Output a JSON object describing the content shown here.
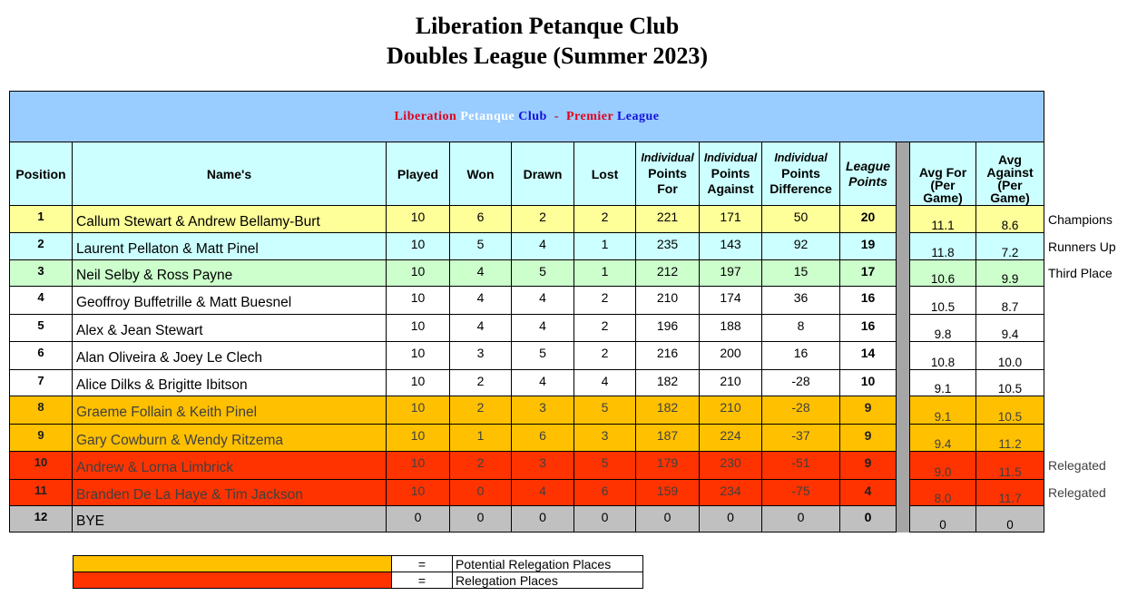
{
  "page_title": [
    "Liberation Petanque Club",
    "Doubles League (Summer 2023)"
  ],
  "banner": {
    "part1": "Liberation",
    "part2": "Petanque",
    "part3": "Club",
    "sep": "-",
    "part4": "Premier",
    "part5": "League"
  },
  "headers": {
    "position": "Position",
    "names": "Name's",
    "played": "Played",
    "won": "Won",
    "drawn": "Drawn",
    "lost": "Lost",
    "pf_top": "Individual",
    "pf_bottom": "Points For",
    "pa_top": "Individual",
    "pa_bottom": "Points Against",
    "pd_top": "Individual",
    "pd_bottom": "Points Difference",
    "league_points": "League Points",
    "avg_for": "Avg For (Per Game)",
    "avg_against": "Avg Against (Per Game)"
  },
  "colors": {
    "banner": "#99ccff",
    "header": "#ccffff",
    "champions": "#ffff99",
    "runners_up": "#ccffff",
    "third": "#ccffcc",
    "potential_relegation": "#ffc000",
    "relegation": "#ff3300",
    "bye": "#c0c0c0"
  },
  "rows": [
    {
      "pos": "1",
      "name": "Callum Stewart & Andrew Bellamy-Burt",
      "played": "10",
      "won": "6",
      "drawn": "2",
      "lost": "2",
      "pf": "221",
      "pa": "171",
      "pd": "50",
      "lp": "20",
      "avg_for": "11.1",
      "avg_against": "8.6",
      "note": "Champions"
    },
    {
      "pos": "2",
      "name": "Laurent Pellaton & Matt Pinel",
      "played": "10",
      "won": "5",
      "drawn": "4",
      "lost": "1",
      "pf": "235",
      "pa": "143",
      "pd": "92",
      "lp": "19",
      "avg_for": "11.8",
      "avg_against": "7.2",
      "note": "Runners Up"
    },
    {
      "pos": "3",
      "name": "Neil Selby & Ross Payne",
      "played": "10",
      "won": "4",
      "drawn": "5",
      "lost": "1",
      "pf": "212",
      "pa": "197",
      "pd": "15",
      "lp": "17",
      "avg_for": "10.6",
      "avg_against": "9.9",
      "note": "Third Place"
    },
    {
      "pos": "4",
      "name": "Geoffroy Buffetrille & Matt Buesnel",
      "played": "10",
      "won": "4",
      "drawn": "4",
      "lost": "2",
      "pf": "210",
      "pa": "174",
      "pd": "36",
      "lp": "16",
      "avg_for": "10.5",
      "avg_against": "8.7",
      "note": ""
    },
    {
      "pos": "5",
      "name": "Alex & Jean Stewart",
      "played": "10",
      "won": "4",
      "drawn": "4",
      "lost": "2",
      "pf": "196",
      "pa": "188",
      "pd": "8",
      "lp": "16",
      "avg_for": "9.8",
      "avg_against": "9.4",
      "note": ""
    },
    {
      "pos": "6",
      "name": "Alan Oliveira & Joey Le Clech",
      "played": "10",
      "won": "3",
      "drawn": "5",
      "lost": "2",
      "pf": "216",
      "pa": "200",
      "pd": "16",
      "lp": "14",
      "avg_for": "10.8",
      "avg_against": "10.0",
      "note": ""
    },
    {
      "pos": "7",
      "name": "Alice Dilks & Brigitte Ibitson",
      "played": "10",
      "won": "2",
      "drawn": "4",
      "lost": "4",
      "pf": "182",
      "pa": "210",
      "pd": "-28",
      "lp": "10",
      "avg_for": "9.1",
      "avg_against": "10.5",
      "note": ""
    },
    {
      "pos": "8",
      "name": "Graeme Follain & Keith Pinel",
      "played": "10",
      "won": "2",
      "drawn": "3",
      "lost": "5",
      "pf": "182",
      "pa": "210",
      "pd": "-28",
      "lp": "9",
      "avg_for": "9.1",
      "avg_against": "10.5",
      "note": ""
    },
    {
      "pos": "9",
      "name": "Gary Cowburn & Wendy Ritzema",
      "played": "10",
      "won": "1",
      "drawn": "6",
      "lost": "3",
      "pf": "187",
      "pa": "224",
      "pd": "-37",
      "lp": "9",
      "avg_for": "9.4",
      "avg_against": "11.2",
      "note": ""
    },
    {
      "pos": "10",
      "name": "Andrew & Lorna Limbrick",
      "played": "10",
      "won": "2",
      "drawn": "3",
      "lost": "5",
      "pf": "179",
      "pa": "230",
      "pd": "-51",
      "lp": "9",
      "avg_for": "9.0",
      "avg_against": "11.5",
      "note": "Relegated"
    },
    {
      "pos": "11",
      "name": "Branden De La Haye & Tim Jackson",
      "played": "10",
      "won": "0",
      "drawn": "4",
      "lost": "6",
      "pf": "159",
      "pa": "234",
      "pd": "-75",
      "lp": "4",
      "avg_for": "8.0",
      "avg_against": "11.7",
      "note": "Relegated"
    },
    {
      "pos": "12",
      "name": "BYE",
      "played": "0",
      "won": "0",
      "drawn": "0",
      "lost": "0",
      "pf": "0",
      "pa": "0",
      "pd": "0",
      "lp": "0",
      "avg_for": "0",
      "avg_against": "0",
      "note": ""
    }
  ],
  "legend": [
    {
      "eq": "=",
      "label": "Potential Relegation Places"
    },
    {
      "eq": "=",
      "label": "Relegation Places"
    }
  ]
}
